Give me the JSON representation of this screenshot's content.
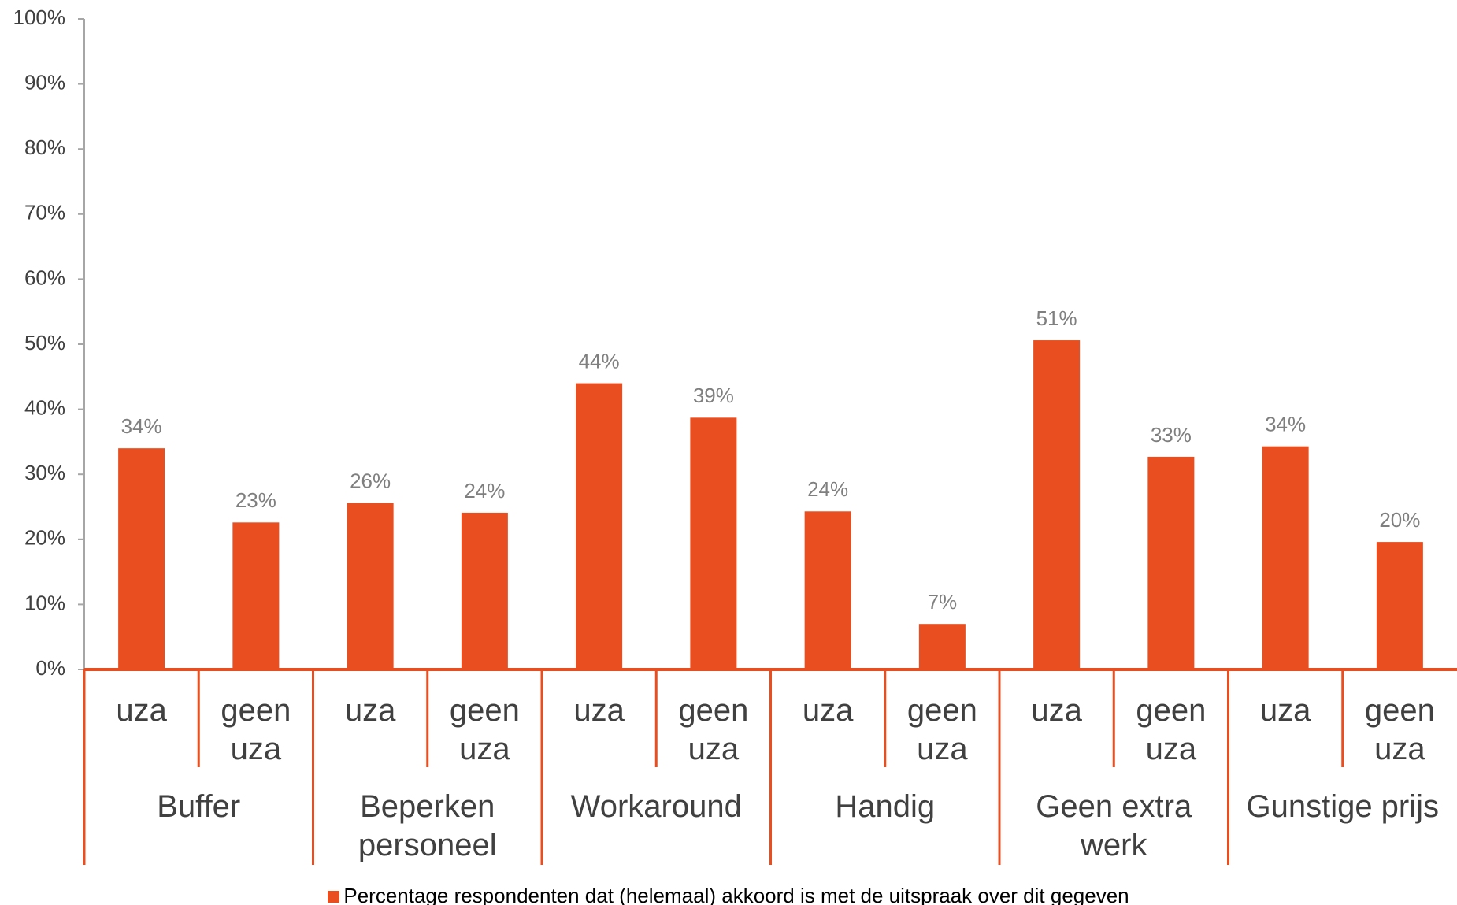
{
  "chart_data": {
    "type": "bar",
    "categories": [
      "uza",
      "geen uza",
      "uza",
      "geen uza",
      "uza",
      "geen uza",
      "uza",
      "geen uza",
      "uza",
      "geen uza",
      "uza",
      "geen uza"
    ],
    "groups": [
      "Buffer",
      "Beperken personeel",
      "Workaround",
      "Handig",
      "Geen extra werk",
      "Gunstige prijs"
    ],
    "series": [
      {
        "name": "Percentage respondenten dat (helemaal) akkoord is met de uitspraak over dit gegeven",
        "color": "#e84e1f",
        "values": [
          34.0,
          22.6,
          25.6,
          24.1,
          44.0,
          38.7,
          24.3,
          7.0,
          50.6,
          32.7,
          34.3,
          19.6
        ],
        "value_labels": [
          "34%",
          "23%",
          "26%",
          "24%",
          "44%",
          "39%",
          "24%",
          "7%",
          "51%",
          "33%",
          "34%",
          "20%"
        ]
      }
    ],
    "ylim": [
      0,
      100
    ],
    "yticks": [
      {
        "value": 0,
        "label": "0%"
      },
      {
        "value": 10,
        "label": "10%"
      },
      {
        "value": 20,
        "label": "20%"
      },
      {
        "value": 30,
        "label": "30%"
      },
      {
        "value": 40,
        "label": "40%"
      },
      {
        "value": 50,
        "label": "50%"
      },
      {
        "value": 60,
        "label": "60%"
      },
      {
        "value": 70,
        "label": "70%"
      },
      {
        "value": 80,
        "label": "80%"
      },
      {
        "value": 90,
        "label": "90%"
      },
      {
        "value": 100,
        "label": "100%"
      }
    ],
    "legend": "bottom"
  }
}
